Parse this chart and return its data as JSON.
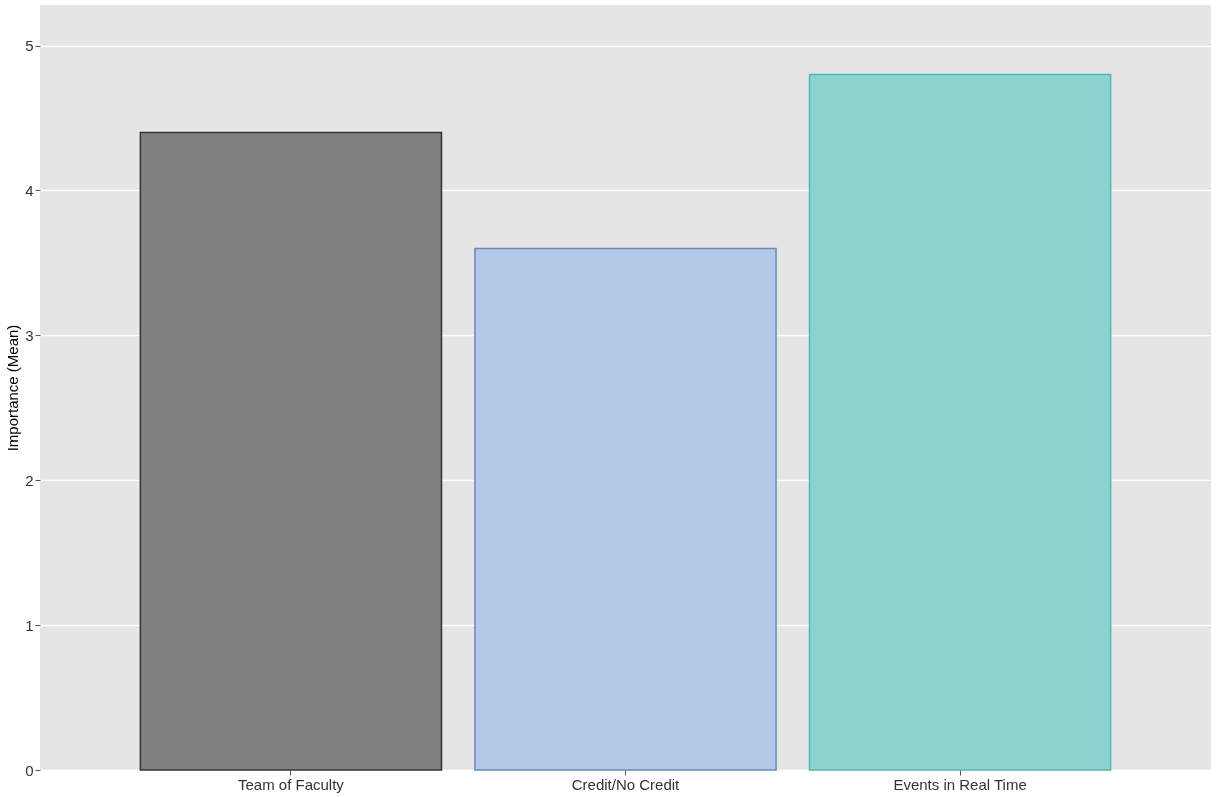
{
  "chart_data": {
    "type": "bar",
    "ylabel": "Importance (Mean)",
    "categories": [
      "Team of Faculty",
      "Credit/No Credit",
      "Events in Real Time"
    ],
    "values": [
      4.4,
      3.6,
      4.8
    ],
    "colors": [
      "#808080",
      "#b3c9e8",
      "#8cd3cf"
    ],
    "ylim": [
      0,
      5.28
    ],
    "yticks": [
      0,
      1,
      2,
      3,
      4,
      5
    ],
    "grid": "y"
  }
}
